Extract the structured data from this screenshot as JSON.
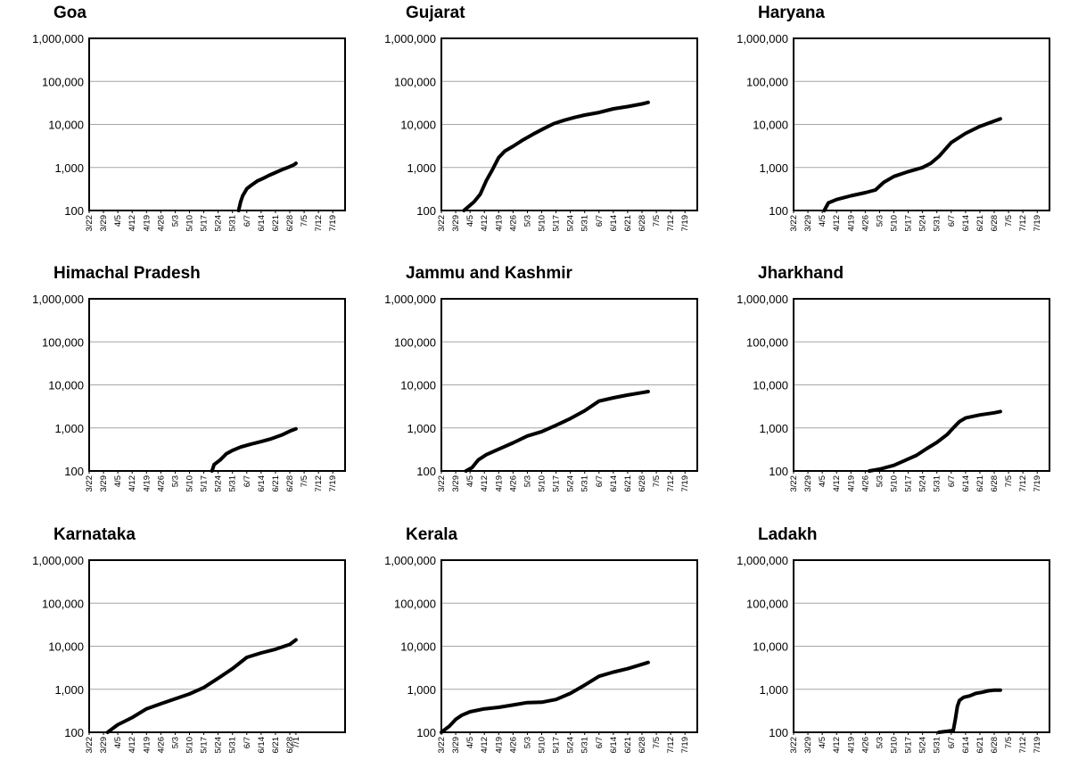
{
  "chart_data": [
    {
      "type": "line",
      "title": "Goa",
      "yscale": "log",
      "ylim": [
        100,
        1000000
      ],
      "yticks": [
        "100",
        "1,000",
        "10,000",
        "100,000",
        "1,000,000"
      ],
      "categories": [
        "3/22",
        "3/29",
        "4/5",
        "4/12",
        "4/19",
        "4/26",
        "5/3",
        "5/10",
        "5/17",
        "5/24",
        "5/31",
        "6/7",
        "6/14",
        "6/21",
        "6/28",
        "7/5",
        "7/12",
        "7/19"
      ],
      "xlim": [
        "3/22",
        "7/25"
      ],
      "grid": "horizontal",
      "color": "#000000",
      "series": [
        {
          "x": [
            "6/3",
            "6/4",
            "6/5",
            "6/7",
            "6/9",
            "6/12",
            "6/15",
            "6/18",
            "6/21",
            "6/24",
            "6/27",
            "6/30",
            "7/1"
          ],
          "y": [
            100,
            160,
            220,
            320,
            380,
            480,
            560,
            660,
            760,
            880,
            1000,
            1150,
            1250
          ]
        }
      ]
    },
    {
      "type": "line",
      "title": "Gujarat",
      "yscale": "log",
      "ylim": [
        100,
        1000000
      ],
      "yticks": [
        "100",
        "1,000",
        "10,000",
        "100,000",
        "1,000,000"
      ],
      "categories": [
        "3/22",
        "3/29",
        "4/5",
        "4/12",
        "4/19",
        "4/26",
        "5/3",
        "5/10",
        "5/17",
        "5/24",
        "5/31",
        "6/7",
        "6/14",
        "6/21",
        "6/28",
        "7/5",
        "7/12",
        "7/19"
      ],
      "xlim": [
        "3/22",
        "7/25"
      ],
      "grid": "horizontal",
      "color": "#000000",
      "series": [
        {
          "x": [
            "4/2",
            "4/4",
            "4/7",
            "4/10",
            "4/13",
            "4/16",
            "4/19",
            "4/22",
            "4/26",
            "5/1",
            "5/6",
            "5/11",
            "5/16",
            "5/21",
            "5/26",
            "5/31",
            "6/7",
            "6/14",
            "6/21",
            "6/28",
            "7/1"
          ],
          "y": [
            100,
            120,
            160,
            240,
            500,
            900,
            1700,
            2400,
            3100,
            4400,
            6000,
            8000,
            10500,
            12500,
            14500,
            16500,
            19000,
            23000,
            26000,
            30000,
            32500
          ]
        }
      ]
    },
    {
      "type": "line",
      "title": "Haryana",
      "yscale": "log",
      "ylim": [
        100,
        1000000
      ],
      "yticks": [
        "100",
        "1,000",
        "10,000",
        "100,000",
        "1,000,000"
      ],
      "categories": [
        "3/22",
        "3/29",
        "4/5",
        "4/12",
        "4/19",
        "4/26",
        "5/3",
        "5/10",
        "5/17",
        "5/24",
        "5/31",
        "6/7",
        "6/14",
        "6/21",
        "6/28",
        "7/5",
        "7/12",
        "7/19"
      ],
      "xlim": [
        "3/22",
        "7/25"
      ],
      "grid": "horizontal",
      "color": "#000000",
      "series": [
        {
          "x": [
            "4/6",
            "4/8",
            "4/12",
            "4/19",
            "4/26",
            "5/1",
            "5/5",
            "5/10",
            "5/17",
            "5/24",
            "5/28",
            "6/1",
            "6/7",
            "6/14",
            "6/21",
            "6/28",
            "7/1"
          ],
          "y": [
            100,
            150,
            180,
            220,
            260,
            300,
            450,
            620,
            800,
            1000,
            1250,
            1800,
            3800,
            6200,
            9000,
            12000,
            13500
          ]
        }
      ]
    },
    {
      "type": "line",
      "title": "Himachal Pradesh",
      "yscale": "log",
      "ylim": [
        100,
        1000000
      ],
      "yticks": [
        "100",
        "1,000",
        "10,000",
        "100,000",
        "1,000,000"
      ],
      "categories": [
        "3/22",
        "3/29",
        "4/5",
        "4/12",
        "4/19",
        "4/26",
        "5/3",
        "5/10",
        "5/17",
        "5/24",
        "5/31",
        "6/7",
        "6/14",
        "6/21",
        "6/28",
        "7/5",
        "7/12",
        "7/19"
      ],
      "xlim": [
        "3/22",
        "7/25"
      ],
      "grid": "horizontal",
      "color": "#000000",
      "series": [
        {
          "x": [
            "5/21",
            "5/22",
            "5/25",
            "5/28",
            "5/31",
            "6/4",
            "6/9",
            "6/14",
            "6/19",
            "6/24",
            "6/28",
            "7/1"
          ],
          "y": [
            100,
            140,
            180,
            250,
            300,
            360,
            420,
            480,
            560,
            680,
            840,
            950
          ]
        }
      ]
    },
    {
      "type": "line",
      "title": "Jammu and Kashmir",
      "yscale": "log",
      "ylim": [
        100,
        1000000
      ],
      "yticks": [
        "100",
        "1,000",
        "10,000",
        "100,000",
        "1,000,000"
      ],
      "categories": [
        "3/22",
        "3/29",
        "4/5",
        "4/12",
        "4/19",
        "4/26",
        "5/3",
        "5/10",
        "5/17",
        "5/24",
        "5/31",
        "6/7",
        "6/14",
        "6/21",
        "6/28",
        "7/5",
        "7/12",
        "7/19"
      ],
      "xlim": [
        "3/22",
        "7/25"
      ],
      "grid": "horizontal",
      "color": "#000000",
      "series": [
        {
          "x": [
            "4/3",
            "4/6",
            "4/9",
            "4/13",
            "4/19",
            "4/26",
            "5/3",
            "5/10",
            "5/17",
            "5/24",
            "5/31",
            "6/7",
            "6/14",
            "6/21",
            "6/28",
            "7/1"
          ],
          "y": [
            100,
            120,
            180,
            240,
            320,
            450,
            650,
            820,
            1150,
            1650,
            2500,
            4200,
            5000,
            5800,
            6600,
            7000
          ]
        }
      ]
    },
    {
      "type": "line",
      "title": "Jharkhand",
      "yscale": "log",
      "ylim": [
        100,
        1000000
      ],
      "yticks": [
        "100",
        "1,000",
        "10,000",
        "100,000",
        "1,000,000"
      ],
      "categories": [
        "3/22",
        "3/29",
        "4/5",
        "4/12",
        "4/19",
        "4/26",
        "5/3",
        "5/10",
        "5/17",
        "5/24",
        "5/31",
        "6/7",
        "6/14",
        "6/21",
        "6/28",
        "7/5",
        "7/12",
        "7/19"
      ],
      "xlim": [
        "3/22",
        "7/25"
      ],
      "grid": "horizontal",
      "color": "#000000",
      "series": [
        {
          "x": [
            "4/28",
            "5/3",
            "5/10",
            "5/17",
            "5/21",
            "5/26",
            "5/31",
            "6/5",
            "6/8",
            "6/11",
            "6/14",
            "6/21",
            "6/28",
            "7/1"
          ],
          "y": [
            100,
            110,
            135,
            190,
            230,
            330,
            460,
            700,
            1000,
            1400,
            1700,
            2000,
            2250,
            2400
          ]
        }
      ]
    },
    {
      "type": "line",
      "title": "Karnataka",
      "yscale": "log",
      "ylim": [
        100,
        1000000
      ],
      "yticks": [
        "100",
        "1,000",
        "10,000",
        "100,000",
        "1,000,000"
      ],
      "categories": [
        "3/22",
        "3/29",
        "4/5",
        "4/12",
        "4/19",
        "4/26",
        "5/3",
        "5/10",
        "5/17",
        "5/24",
        "5/31",
        "6/7",
        "6/14",
        "6/21",
        "6/28",
        "7/1"
      ],
      "xlim": [
        "3/22",
        "7/25"
      ],
      "grid": "horizontal",
      "color": "#000000",
      "series": [
        {
          "x": [
            "3/31",
            "4/5",
            "4/12",
            "4/19",
            "4/26",
            "5/3",
            "5/10",
            "5/17",
            "5/24",
            "5/31",
            "6/7",
            "6/14",
            "6/21",
            "6/28",
            "7/1"
          ],
          "y": [
            100,
            150,
            220,
            350,
            460,
            600,
            780,
            1100,
            1800,
            3000,
            5500,
            7000,
            8500,
            11000,
            14000
          ]
        }
      ]
    },
    {
      "type": "line",
      "title": "Kerala",
      "yscale": "log",
      "ylim": [
        100,
        1000000
      ],
      "yticks": [
        "100",
        "1,000",
        "10,000",
        "100,000",
        "1,000,000"
      ],
      "categories": [
        "3/22",
        "3/29",
        "4/5",
        "4/12",
        "4/19",
        "4/26",
        "5/3",
        "5/10",
        "5/17",
        "5/24",
        "5/31",
        "6/7",
        "6/14",
        "6/21",
        "6/28",
        "7/5",
        "7/12",
        "7/19"
      ],
      "xlim": [
        "3/22",
        "7/25"
      ],
      "grid": "horizontal",
      "color": "#000000",
      "series": [
        {
          "x": [
            "3/22",
            "3/26",
            "3/29",
            "4/1",
            "4/5",
            "4/12",
            "4/19",
            "4/26",
            "5/3",
            "5/10",
            "5/17",
            "5/24",
            "5/31",
            "6/7",
            "6/14",
            "6/21",
            "6/28",
            "7/1"
          ],
          "y": [
            100,
            140,
            200,
            250,
            300,
            350,
            380,
            430,
            490,
            500,
            580,
            800,
            1250,
            2000,
            2500,
            3000,
            3800,
            4200
          ]
        }
      ]
    },
    {
      "type": "line",
      "title": "Ladakh",
      "yscale": "log",
      "ylim": [
        100,
        1000000
      ],
      "yticks": [
        "100",
        "1,000",
        "10,000",
        "100,000",
        "1,000,000"
      ],
      "categories": [
        "3/22",
        "3/29",
        "4/5",
        "4/12",
        "4/19",
        "4/26",
        "5/3",
        "5/10",
        "5/17",
        "5/24",
        "5/31",
        "6/7",
        "6/14",
        "6/21",
        "6/28",
        "7/5",
        "7/12",
        "7/19"
      ],
      "xlim": [
        "3/22",
        "7/25"
      ],
      "grid": "horizontal",
      "color": "#000000",
      "series": [
        {
          "x": [
            "6/1",
            "6/8",
            "6/9",
            "6/10",
            "6/11",
            "6/13",
            "6/16",
            "6/19",
            "6/22",
            "6/25",
            "6/28",
            "7/1"
          ],
          "y": [
            100,
            110,
            200,
            400,
            550,
            650,
            700,
            800,
            850,
            920,
            950,
            950
          ]
        }
      ]
    }
  ]
}
